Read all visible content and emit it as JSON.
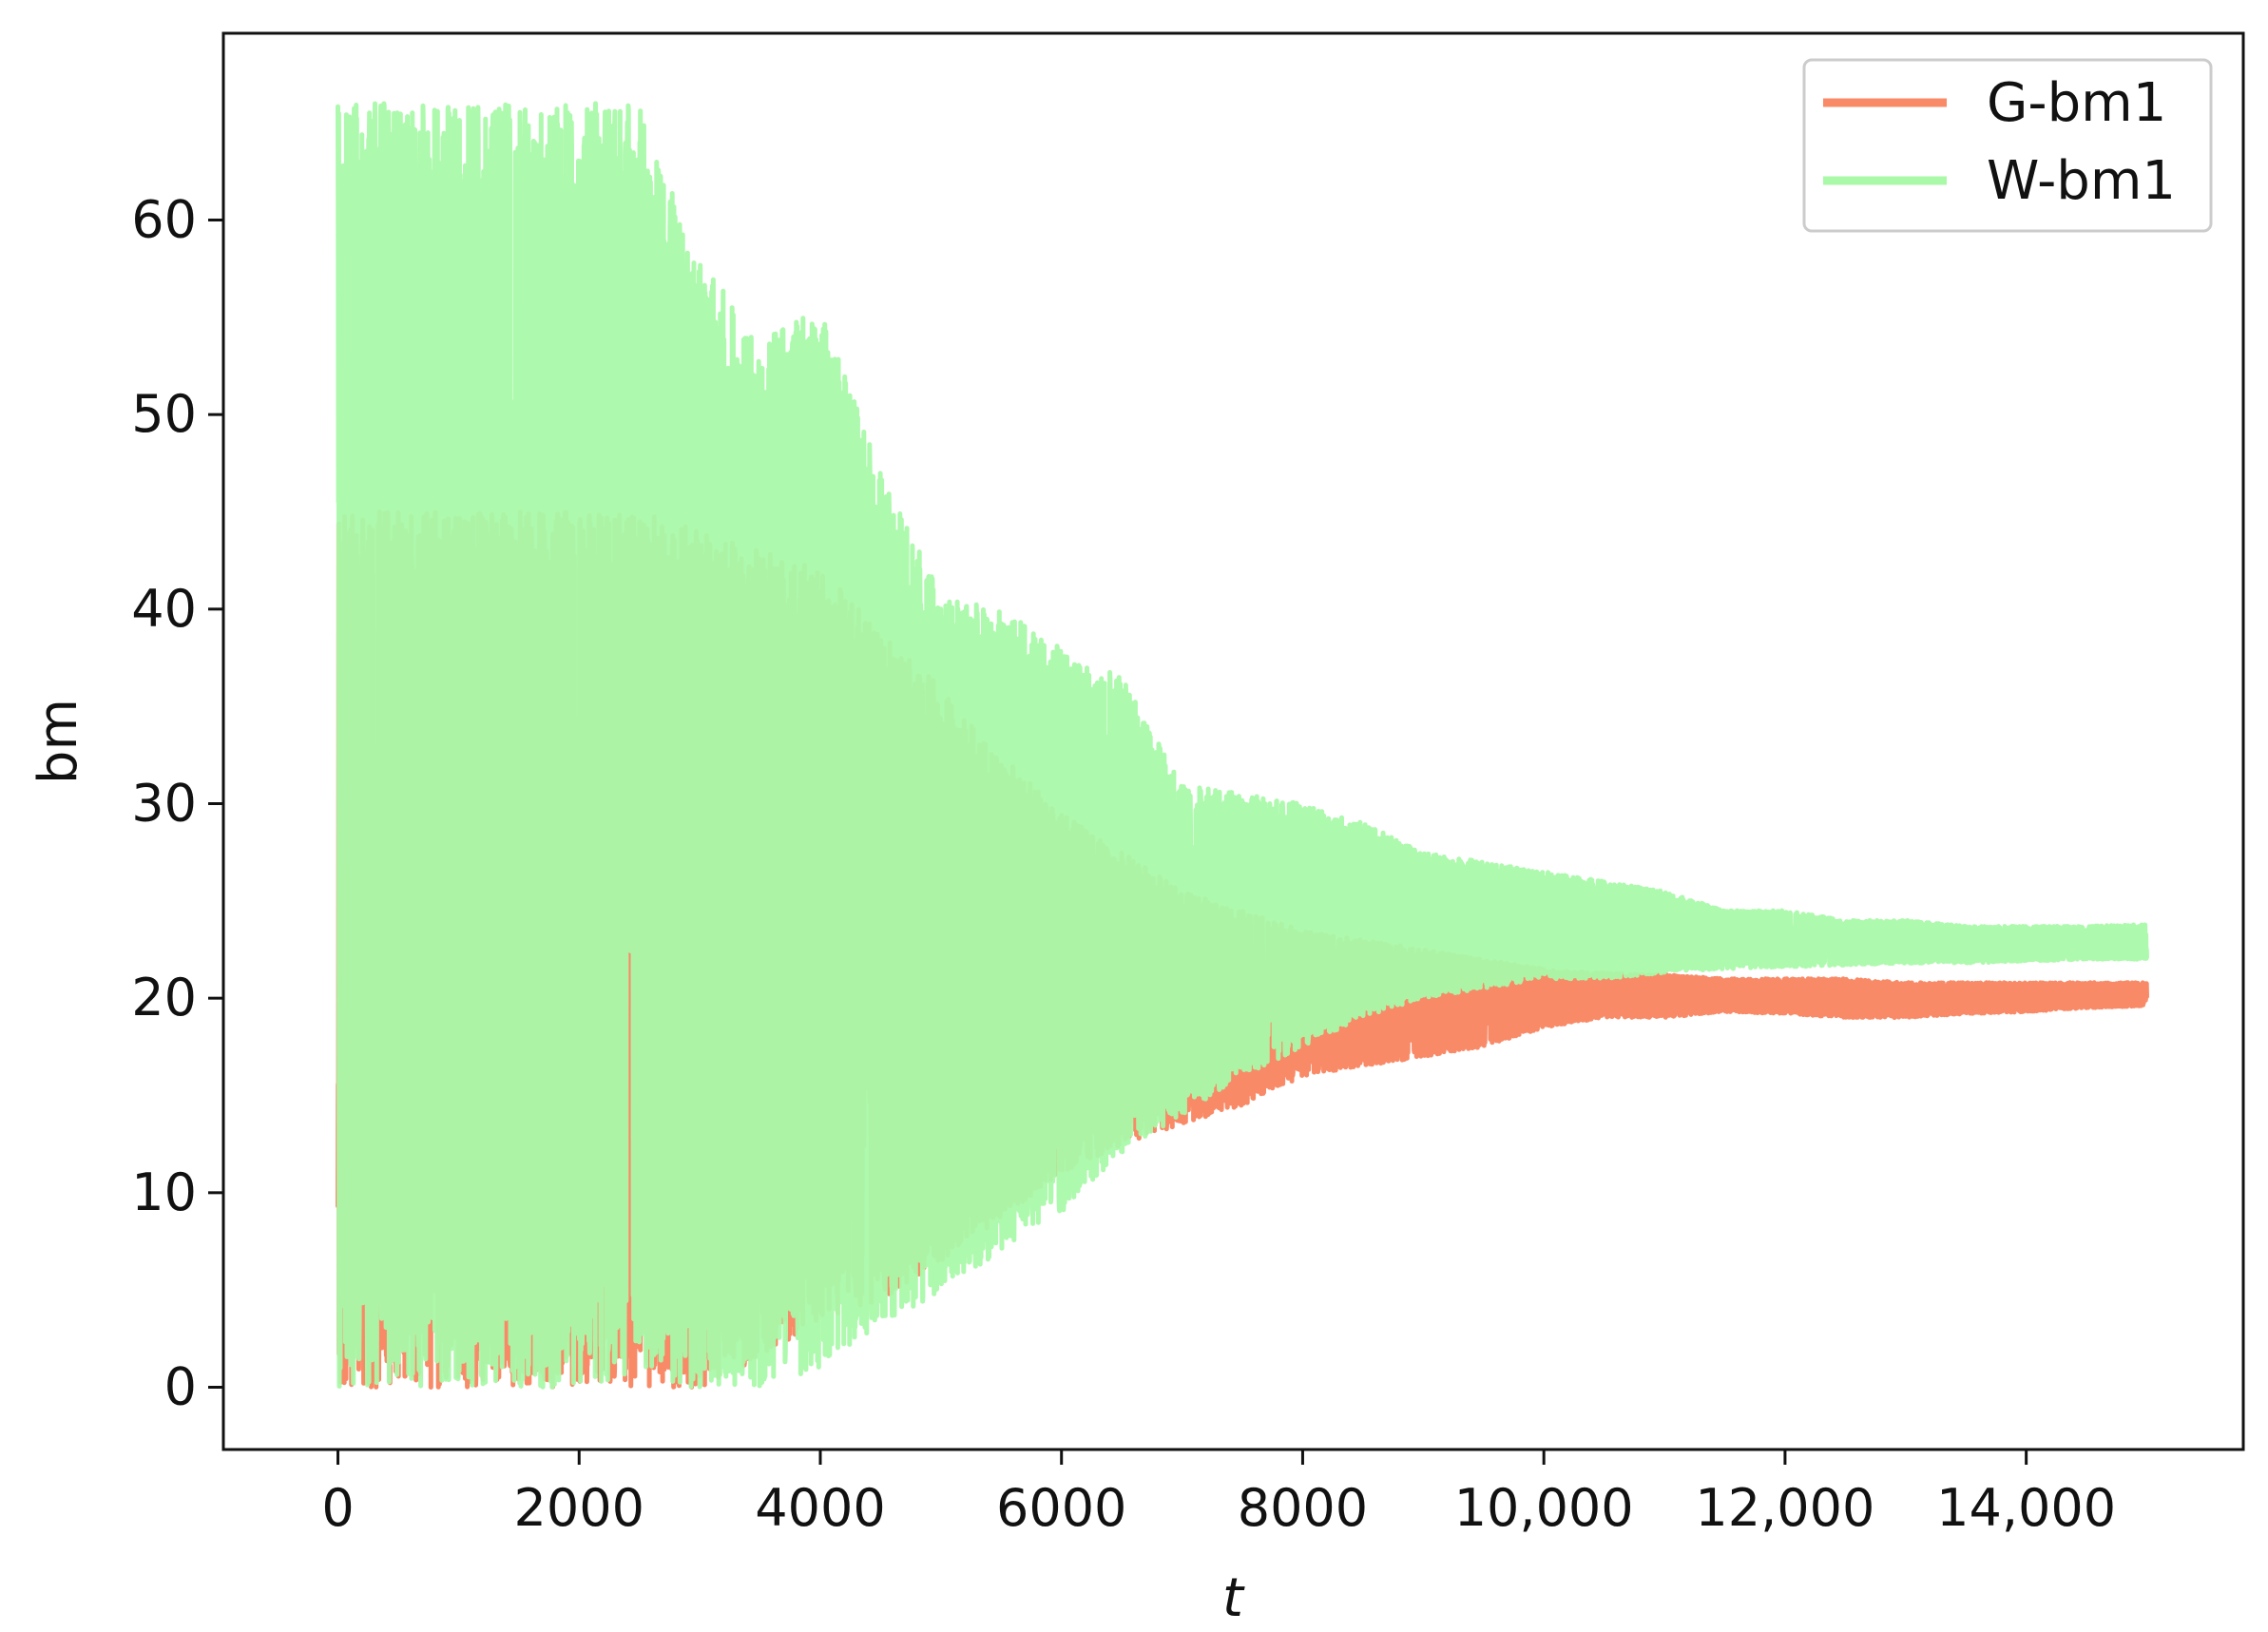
{
  "chart_data": {
    "type": "line",
    "title": "",
    "xlabel": "t",
    "ylabel": "bm",
    "xlim": [
      -950,
      15800
    ],
    "ylim": [
      -3.2,
      69.6
    ],
    "grid": false,
    "legend_position": "top-right",
    "x_ticks": [
      {
        "value": 0,
        "label": "0"
      },
      {
        "value": 2000,
        "label": "2000"
      },
      {
        "value": 4000,
        "label": "4000"
      },
      {
        "value": 6000,
        "label": "6000"
      },
      {
        "value": 8000,
        "label": "8000"
      },
      {
        "value": 10000,
        "label": "10,000"
      },
      {
        "value": 12000,
        "label": "12,000"
      },
      {
        "value": 14000,
        "label": "14,000"
      }
    ],
    "y_ticks": [
      {
        "value": 0,
        "label": "0"
      },
      {
        "value": 10,
        "label": "10"
      },
      {
        "value": 20,
        "label": "20"
      },
      {
        "value": 30,
        "label": "30"
      },
      {
        "value": 40,
        "label": "40"
      },
      {
        "value": 50,
        "label": "50"
      },
      {
        "value": 60,
        "label": "60"
      }
    ],
    "series": [
      {
        "name": "G-bm1",
        "color": "#F98A67",
        "x": [
          0,
          500,
          1000,
          1500,
          2000,
          2500,
          3000,
          3500,
          4000,
          4500,
          5000,
          5500,
          6000,
          6500,
          7000,
          7500,
          8000,
          8500,
          9000,
          9500,
          10000,
          10500,
          11000,
          11500,
          12000,
          12500,
          13000,
          13500,
          14000,
          14500,
          15000
        ],
        "max": [
          45,
          45,
          45,
          45,
          45,
          45,
          44,
          43,
          42,
          39,
          36,
          32.5,
          29.5,
          27.5,
          25.5,
          24.5,
          23.5,
          23,
          22.5,
          22,
          21.5,
          21.3,
          21.2,
          21,
          21,
          21,
          20.8,
          20.8,
          20.8,
          20.8,
          20.8
        ],
        "min": [
          0,
          0,
          0,
          0,
          0,
          0,
          0,
          1.5,
          3.5,
          4.5,
          6.5,
          8.5,
          11,
          12.5,
          13.5,
          14.5,
          16,
          16.5,
          17,
          17.5,
          18.5,
          19,
          19,
          19.3,
          19.2,
          19,
          19,
          19.2,
          19.3,
          19.5,
          19.6
        ]
      },
      {
        "name": "W-bm1",
        "color": "#A9F9A9",
        "x": [
          0,
          500,
          1000,
          1500,
          2000,
          2500,
          3000,
          3500,
          4000,
          4500,
          5000,
          5500,
          6000,
          6500,
          7000,
          7500,
          8000,
          8500,
          9000,
          9500,
          10000,
          10500,
          11000,
          11500,
          12000,
          12500,
          13000,
          13500,
          14000,
          14500,
          15000
        ],
        "max": [
          66,
          66,
          66,
          66,
          66,
          66,
          58,
          54,
          55.5,
          47,
          41,
          40,
          38,
          36.5,
          31,
          30.5,
          30,
          29,
          27.5,
          27,
          26.5,
          26,
          25.5,
          24.5,
          24.5,
          24,
          24,
          23.7,
          23.7,
          23.7,
          23.8
        ],
        "min": [
          0,
          0,
          0,
          0,
          0,
          0,
          0,
          0,
          1,
          3,
          5,
          7,
          9,
          12,
          14,
          16,
          17.5,
          19,
          20,
          20.5,
          21,
          21,
          21.3,
          21.5,
          21.6,
          21.7,
          21.8,
          21.8,
          21.9,
          22,
          22
        ]
      }
    ]
  }
}
